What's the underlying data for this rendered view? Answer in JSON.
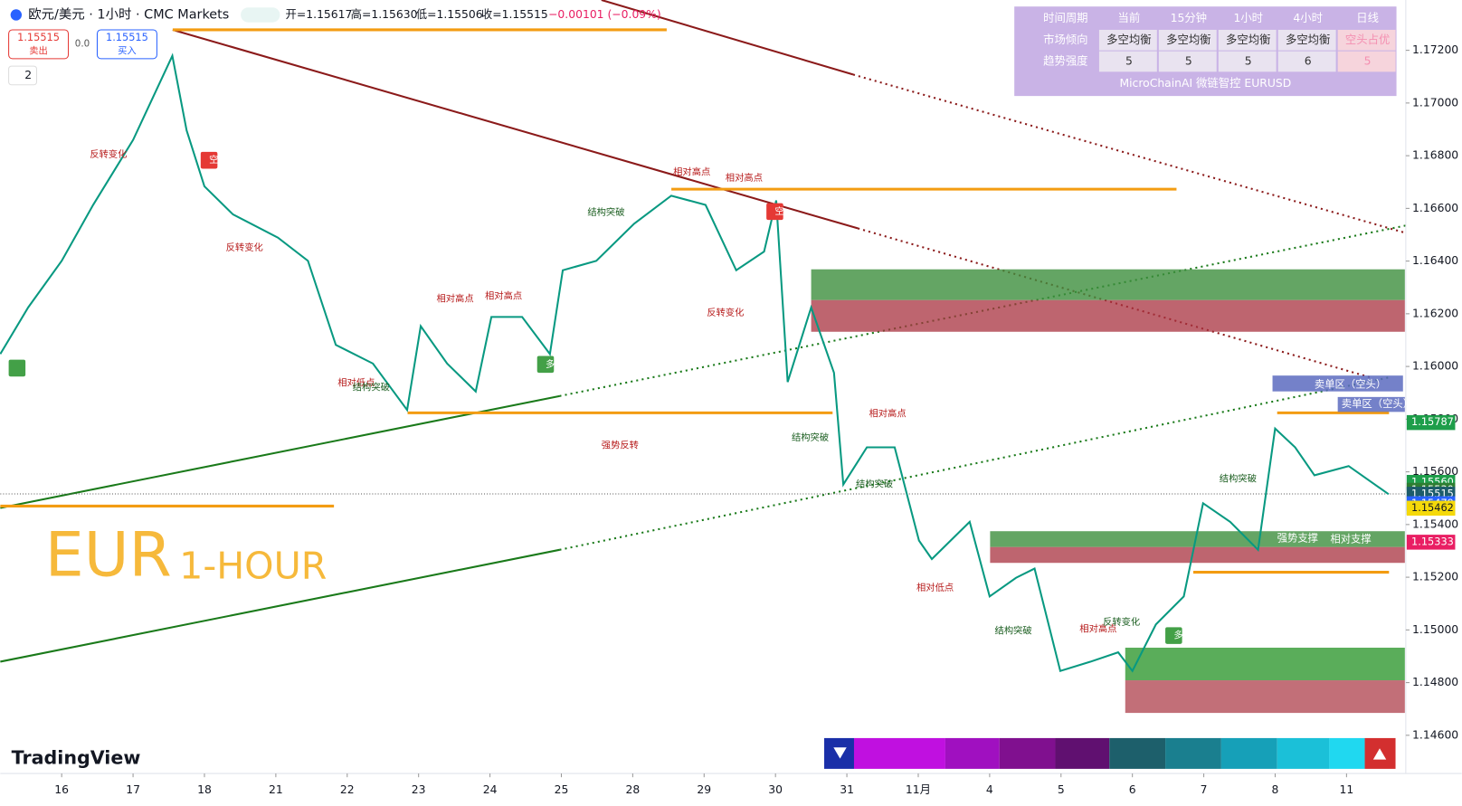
{
  "header": {
    "symbol": "欧元/美元 · 1小时 · CMC Markets",
    "open": "开=1.15617",
    "high": "高=1.15630",
    "low": "低=1.15506",
    "close": "收=1.15515",
    "change": "−0.00101 (−0.09%)",
    "sell_price": "1.15515",
    "sell_label": "卖出",
    "spread": "0.0",
    "buy_price": "1.15515",
    "buy_label": "买入",
    "indicator_count": "2"
  },
  "watermark": {
    "main": "EUR",
    "sub": "1-HOUR"
  },
  "logo": "TradingView",
  "table": {
    "header": [
      "时间周期",
      "当前",
      "15分钟",
      "1小时",
      "4小时",
      "日线"
    ],
    "rows": [
      [
        "市场倾向",
        "多空均衡",
        "多空均衡",
        "多空均衡",
        "多空均衡",
        "空头占优"
      ],
      [
        "趋势强度",
        5,
        5,
        5,
        6,
        5
      ]
    ],
    "footer": "MicroChainAI 微链智控 EURUSD"
  },
  "annotations": [
    "反转变化",
    "空",
    "反转变化",
    "相对高点",
    "相对高点",
    "结构突破",
    "反转变化",
    "相对高点",
    "相对高点",
    "多",
    "相对低点",
    "结构突破",
    "强势反转",
    "结构突破",
    "相对高点",
    "结构突破",
    "相对低点",
    "结构突破",
    "相对高点",
    "反转变化",
    "多",
    "结构突破",
    "卖单区（空头）",
    "卖单区（空头）",
    "强势支撑",
    "相对支撑",
    "空"
  ],
  "chart_data": {
    "type": "line",
    "series": [
      {
        "name": "EURUSD",
        "color": "#089981",
        "x": [
          -0.86,
          -0.47,
          0,
          0.44,
          1.0,
          1.55,
          1.75,
          2.0,
          2.4,
          3.03,
          3.45,
          3.84,
          4.36,
          4.84,
          5.03,
          5.4,
          5.8,
          6.02,
          6.45,
          6.84,
          7.02,
          7.49,
          8.02,
          8.54,
          9.02,
          9.45,
          9.84,
          10.01,
          10.17,
          10.5,
          10.82,
          10.95,
          11.28,
          11.67,
          12.01,
          12.19,
          12.72,
          13.0,
          13.37,
          13.63,
          13.99,
          14.41,
          14.8,
          15.0,
          15.33,
          15.72,
          15.99,
          16.37,
          16.76,
          17.0,
          17.28,
          17.55,
          18.03,
          18.59
        ],
        "values": [
          1.16047,
          1.16224,
          1.16401,
          1.16613,
          1.1686,
          1.17179,
          1.16896,
          1.16684,
          1.16577,
          1.16489,
          1.16401,
          1.16082,
          1.16011,
          1.15835,
          1.16153,
          1.16011,
          1.15905,
          1.16188,
          1.16188,
          1.16047,
          1.16365,
          1.16401,
          1.16542,
          1.16648,
          1.16613,
          1.16365,
          1.16436,
          1.1663,
          1.15941,
          1.16224,
          1.15976,
          1.15552,
          1.15693,
          1.15693,
          1.15339,
          1.15269,
          1.1541,
          1.15127,
          1.15198,
          1.15233,
          1.14844,
          1.14879,
          1.14915,
          1.14844,
          1.15021,
          1.15127,
          1.15481,
          1.1541,
          1.15304,
          1.15764,
          1.15693,
          1.15587,
          1.15622,
          1.15515
        ]
      }
    ],
    "xlim": [
      -0.86,
      18.83
    ],
    "xticks": [
      {
        "value": 0,
        "label": "16"
      },
      {
        "value": 1,
        "label": "17"
      },
      {
        "value": 2,
        "label": "18"
      },
      {
        "value": 3,
        "label": "21"
      },
      {
        "value": 4,
        "label": "22"
      },
      {
        "value": 5,
        "label": "23"
      },
      {
        "value": 6,
        "label": "24"
      },
      {
        "value": 7,
        "label": "25"
      },
      {
        "value": 8,
        "label": "28"
      },
      {
        "value": 9,
        "label": "29"
      },
      {
        "value": 10,
        "label": "30"
      },
      {
        "value": 11,
        "label": "31"
      },
      {
        "value": 12,
        "label": "11月"
      },
      {
        "value": 13,
        "label": "4"
      },
      {
        "value": 14,
        "label": "5"
      },
      {
        "value": 15,
        "label": "6"
      },
      {
        "value": 16,
        "label": "7"
      },
      {
        "value": 17,
        "label": "8"
      },
      {
        "value": 18,
        "label": "11"
      }
    ],
    "ylim": [
      1.14455,
      1.17391
    ],
    "yticks": [
      {
        "value": 1.146,
        "label": "1.14600"
      },
      {
        "value": 1.148,
        "label": "1.14800"
      },
      {
        "value": 1.15,
        "label": "1.15000"
      },
      {
        "value": 1.152,
        "label": "1.15200"
      },
      {
        "value": 1.154,
        "label": "1.15400"
      },
      {
        "value": 1.156,
        "label": "1.15600"
      },
      {
        "value": 1.158,
        "label": "1.15800"
      },
      {
        "value": 1.16,
        "label": "1.16000"
      },
      {
        "value": 1.162,
        "label": "1.16200"
      },
      {
        "value": 1.164,
        "label": "1.16400"
      },
      {
        "value": 1.166,
        "label": "1.16600"
      },
      {
        "value": 1.168,
        "label": "1.16800"
      },
      {
        "value": 1.17,
        "label": "1.17000"
      },
      {
        "value": 1.172,
        "label": "1.17200"
      }
    ],
    "price_tags": [
      {
        "value": 1.15787,
        "label": "1.15787",
        "color": "#1e9e4a"
      },
      {
        "value": 1.1556,
        "label": "1.15560",
        "color": "#1e9e4a"
      },
      {
        "value": 1.1553,
        "label": "1.15530",
        "color": "#2e7d32"
      },
      {
        "value": 1.15515,
        "label": "1.15515",
        "color": "#1d5c6b"
      },
      {
        "value": 1.15479,
        "label": "1.15479",
        "color": "#2962ff"
      },
      {
        "value": 1.15462,
        "label": "1.15462",
        "color": "#f5d90a"
      },
      {
        "value": 1.15333,
        "label": "1.15333",
        "color": "#e91e63"
      }
    ],
    "countdown": "07:48"
  }
}
